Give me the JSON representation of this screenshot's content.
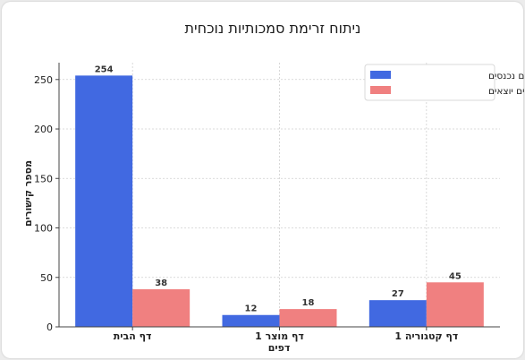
{
  "chart_data": {
    "type": "bar",
    "title": "ניתוח זרימת סמכותיות נוכחית",
    "xlabel": "דפים",
    "ylabel": "מספר קישורים",
    "categories": [
      "דף הבית",
      "דף מוצר 1",
      "דף קטגוריה 1"
    ],
    "series": [
      {
        "name": "קישורים פנימיים נכנסים",
        "values": [
          254,
          12,
          27
        ],
        "color": "#4169e1"
      },
      {
        "name": "קישורים פנימיים יוצאים",
        "values": [
          38,
          18,
          45
        ],
        "color": "#f08080"
      }
    ],
    "ylim": [
      0,
      267
    ],
    "yticks": [
      0,
      50,
      100,
      150,
      200,
      250
    ],
    "grid": true,
    "legend_position": "top-right"
  }
}
